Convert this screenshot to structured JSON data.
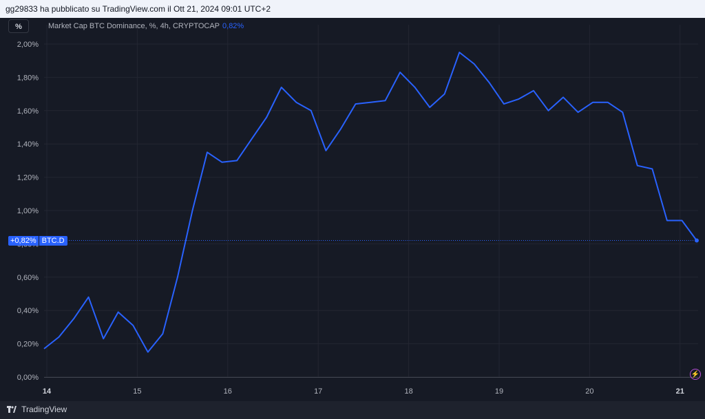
{
  "header": {
    "published_text": "gg29833 ha pubblicato su TradingView.com il Ott 21, 2024 09:01 UTC+2"
  },
  "toolbar": {
    "percent_button": "%"
  },
  "legend": {
    "title": "Market Cap BTC Dominance, %, 4h, CRYPTOCAP",
    "value": "0,82%"
  },
  "price_tag": {
    "change": "+0,82%",
    "symbol": "BTC.D"
  },
  "footer": {
    "brand": "TradingView"
  },
  "colors": {
    "line": "#2962ff",
    "background": "#161a25",
    "grid": "#232632",
    "text": "#b2b5be"
  },
  "chart_data": {
    "type": "line",
    "title": "Market Cap BTC Dominance, %, 4h, CRYPTOCAP",
    "ylim": [
      0,
      2.0
    ],
    "y_ticks": [
      "0,00%",
      "0,20%",
      "0,40%",
      "0,60%",
      "0,80%",
      "1,00%",
      "1,20%",
      "1,40%",
      "1,60%",
      "1,80%",
      "2,00%"
    ],
    "x_ticks": [
      "14",
      "15",
      "16",
      "17",
      "18",
      "19",
      "20",
      "21"
    ],
    "grid": true,
    "series": [
      {
        "values": [
          0.17,
          0.24,
          0.35,
          0.48,
          0.23,
          0.39,
          0.31,
          0.15,
          0.26,
          0.6,
          1.0,
          1.35,
          1.29,
          1.3,
          1.43,
          1.56,
          1.74,
          1.65,
          1.6,
          1.36,
          1.49,
          1.64,
          1.65,
          1.66,
          1.83,
          1.74,
          1.62,
          1.7,
          1.95,
          1.88,
          1.77,
          1.64,
          1.67,
          1.72,
          1.6,
          1.68,
          1.59,
          1.65,
          1.65,
          1.59,
          1.27,
          1.25,
          0.94,
          0.94,
          0.82
        ]
      }
    ],
    "last_value": "0,82%"
  }
}
